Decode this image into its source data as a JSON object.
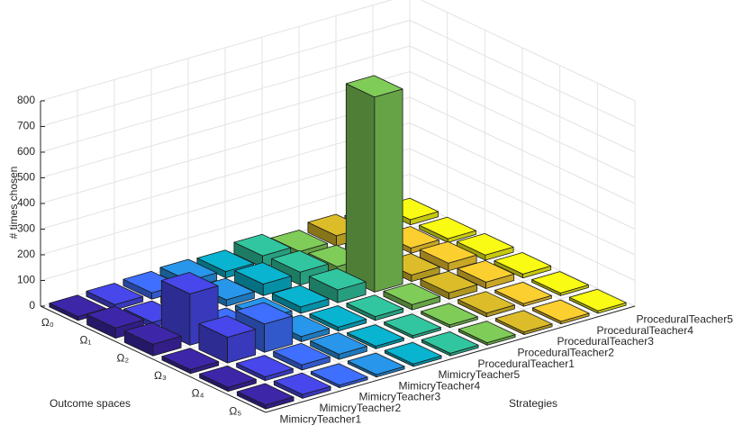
{
  "chart_data": {
    "type": "bar3",
    "zlabel": "# times chosen",
    "xlabel": "Strategies",
    "ylabel": "Outcome spaces",
    "categories": [
      "MimicryTeacher1",
      "MimicryTeacher2",
      "MimicryTeacher3",
      "MimicryTeacher4",
      "MimicryTeacher5",
      "ProceduralTeacher1",
      "ProceduralTeacher2",
      "ProceduralTeacher3",
      "ProceduralTeacher4",
      "ProceduralTeacher5"
    ],
    "rows": [
      "Ω₀",
      "Ω₁",
      "Ω₂",
      "Ω₃",
      "Ω₄",
      "Ω₅"
    ],
    "colors": [
      "#3e26a8",
      "#4747eb",
      "#3e6ffe",
      "#2796eb",
      "#08b4d0",
      "#31c69f",
      "#80cc59",
      "#dcbd29",
      "#fccf30",
      "#f9fb14"
    ],
    "values": [
      [
        15,
        20,
        25,
        30,
        25,
        45,
        20,
        40,
        25,
        20
      ],
      [
        40,
        20,
        30,
        25,
        45,
        50,
        30,
        25,
        20,
        15
      ],
      [
        45,
        200,
        20,
        20,
        25,
        50,
        760,
        25,
        30,
        20
      ],
      [
        15,
        100,
        110,
        20,
        15,
        15,
        20,
        25,
        25,
        15
      ],
      [
        15,
        15,
        20,
        20,
        10,
        10,
        10,
        15,
        10,
        10
      ],
      [
        15,
        15,
        10,
        10,
        10,
        10,
        10,
        10,
        10,
        10
      ]
    ],
    "zlim": [
      0,
      800
    ],
    "zticks": [
      0,
      100,
      200,
      300,
      400,
      500,
      600,
      700,
      800
    ],
    "grid": true
  }
}
